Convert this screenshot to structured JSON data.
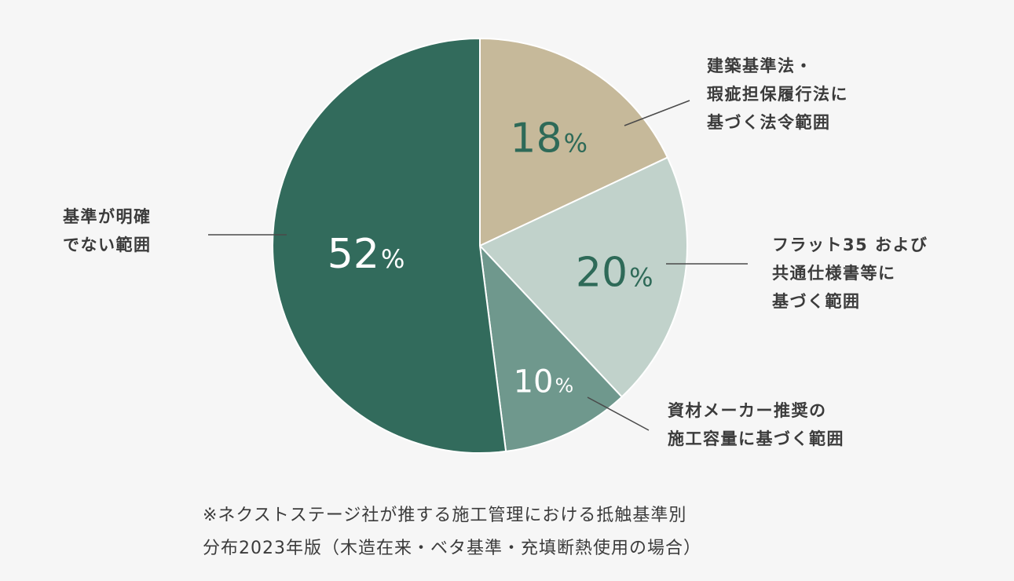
{
  "chart_data": {
    "type": "pie",
    "start": "12 o'clock",
    "direction": "clockwise",
    "slices": [
      {
        "value": 18,
        "value_label": "18%",
        "label": [
          "建築基準法・",
          "瑕疵担保履行法に",
          "基づく法令範囲"
        ],
        "color": "#c6b99a",
        "value_text_color": "#2e6a58"
      },
      {
        "value": 20,
        "value_label": "20%",
        "label": [
          "フラット35 および",
          "共通仕様書等に",
          "基づく範囲"
        ],
        "color": "#c1d2cb",
        "value_text_color": "#2e6a58"
      },
      {
        "value": 10,
        "value_label": "10%",
        "label": [
          "資材メーカー推奨の",
          "施工容量に基づく範囲"
        ],
        "color": "#6f988d",
        "value_text_color": "#ffffff"
      },
      {
        "value": 52,
        "value_label": "52%",
        "label": [
          "基準が明確",
          "でない範囲"
        ],
        "color": "#326b5c",
        "value_text_color": "#ffffff"
      }
    ]
  },
  "footnote": [
    "※ネクストステージ社が推する施工管理における抵触基準別",
    "分布2023年版（木造在来・ベタ基準・充填断熱使用の場合）"
  ]
}
